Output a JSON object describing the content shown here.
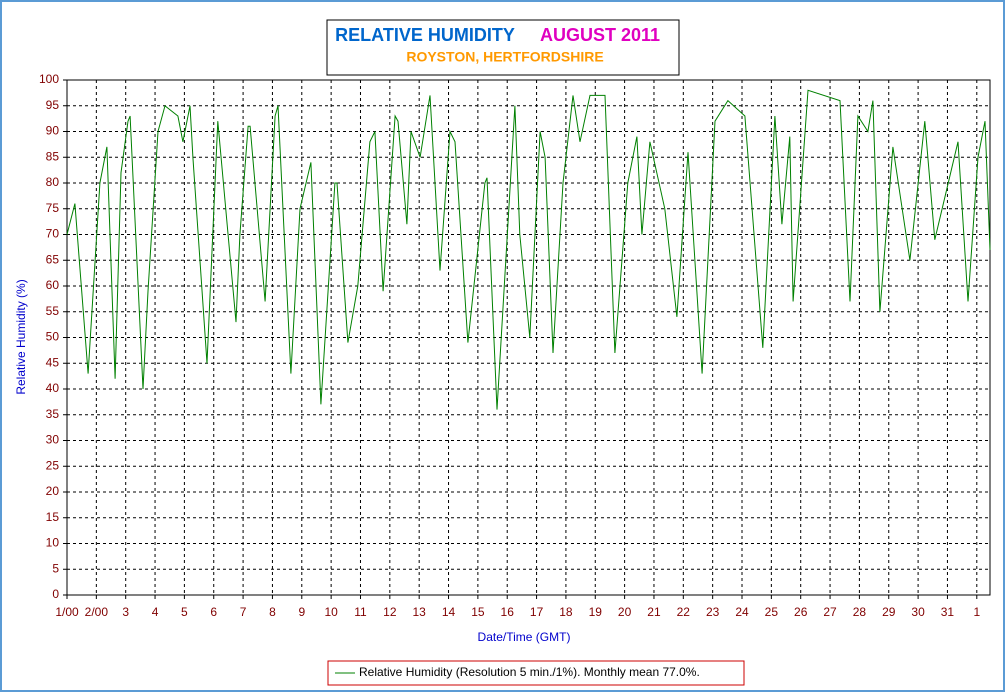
{
  "chart_data": {
    "type": "line",
    "title": "RELATIVE HUMIDITY",
    "title_date": "AUGUST 2011",
    "subtitle": "ROYSTON, HERTFORDSHIRE",
    "x_label": "Date/Time (GMT)",
    "y_label": "Relative Humidity (%)",
    "xlim": [
      1,
      32.45
    ],
    "xticks": [
      {
        "value": 1,
        "label": "1/00"
      },
      {
        "value": 2,
        "label": "2/00"
      },
      3,
      4,
      5,
      6,
      7,
      8,
      9,
      10,
      11,
      12,
      13,
      14,
      15,
      16,
      17,
      18,
      19,
      20,
      21,
      22,
      23,
      24,
      25,
      26,
      27,
      28,
      29,
      30,
      31,
      {
        "value": 32,
        "label": "1"
      }
    ],
    "ylim": [
      0,
      100
    ],
    "yticks": [
      0,
      5,
      10,
      15,
      20,
      25,
      30,
      35,
      40,
      45,
      50,
      55,
      60,
      65,
      70,
      75,
      80,
      85,
      90,
      95,
      100
    ],
    "grid": true,
    "series": [
      {
        "name": "Relative Humidity (Resolution 5 min./1%). Monthly mean 77.0%.",
        "color": "#008000",
        "x": [
          1.0,
          1.27,
          1.72,
          2.12,
          2.36,
          2.64,
          2.84,
          3.08,
          3.15,
          3.59,
          3.76,
          4.1,
          4.34,
          4.78,
          4.95,
          5.19,
          5.29,
          5.77,
          6.14,
          6.76,
          6.89,
          7.17,
          7.24,
          7.75,
          8.09,
          8.19,
          8.63,
          8.94,
          9.31,
          9.65,
          10.13,
          10.2,
          10.57,
          10.91,
          11.32,
          11.49,
          11.77,
          12.18,
          12.28,
          12.58,
          12.72,
          13.03,
          13.37,
          13.71,
          14.05,
          14.22,
          14.66,
          15.24,
          15.31,
          15.65,
          16.26,
          16.43,
          16.77,
          17.12,
          17.29,
          17.56,
          17.9,
          18.24,
          18.48,
          18.82,
          19.33,
          19.67,
          20.11,
          20.42,
          20.59,
          20.86,
          21.37,
          21.78,
          22.16,
          22.64,
          23.08,
          23.52,
          24.1,
          24.71,
          25.12,
          25.36,
          25.63,
          25.74,
          26.25,
          27.34,
          27.68,
          27.95,
          28.29,
          28.46,
          28.7,
          29.14,
          29.72,
          30.23,
          30.57,
          31.36,
          31.7,
          32.04,
          32.28,
          32.45
        ],
        "values": [
          70,
          76,
          43,
          80,
          87,
          42,
          82,
          92,
          93,
          40,
          59,
          90,
          95,
          93,
          88,
          95,
          85,
          45,
          92,
          53,
          70,
          91,
          91,
          57,
          93,
          95,
          43,
          75,
          84,
          37,
          80,
          80,
          49,
          60,
          88,
          90,
          59,
          93,
          92,
          72,
          90,
          85,
          97,
          63,
          90,
          88,
          49,
          80,
          81,
          36,
          95,
          70,
          50,
          90,
          85,
          47,
          80,
          97,
          88,
          97,
          97,
          47,
          80,
          89,
          70,
          88,
          75,
          54,
          86,
          43,
          92,
          96,
          93,
          48,
          93,
          72,
          89,
          57,
          98,
          96,
          57,
          93,
          90,
          96,
          55,
          87,
          65,
          92,
          69,
          88,
          57,
          85,
          92,
          67
        ]
      }
    ]
  }
}
